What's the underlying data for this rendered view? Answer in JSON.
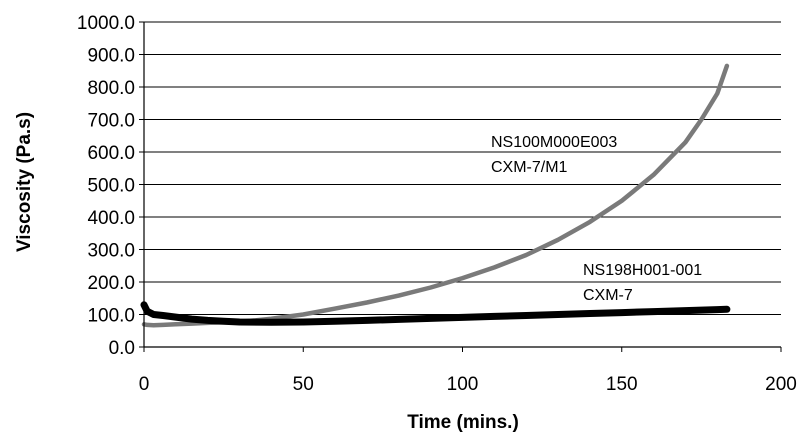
{
  "chart_data": {
    "type": "line",
    "title": "",
    "xlabel": "Time (mins.)",
    "ylabel": "Viscosity (Pa.s)",
    "xlim": [
      0,
      200
    ],
    "ylim": [
      0,
      1000
    ],
    "x_ticks": [
      "0",
      "50",
      "100",
      "150",
      "200"
    ],
    "y_ticks": [
      "0.0",
      "100.0",
      "200.0",
      "300.0",
      "400.0",
      "500.0",
      "600.0",
      "700.0",
      "800.0",
      "900.0",
      "1000.0"
    ],
    "grid": "horizontal",
    "legend": "none",
    "annotations": [
      {
        "lines": [
          "NS100M000E003",
          "CXM-7/M1"
        ]
      },
      {
        "lines": [
          "NS198H001-001",
          "CXM-7"
        ]
      }
    ],
    "series": [
      {
        "name": "NS100M000E003 CXM-7/M1",
        "color": "#7a7a7a",
        "x": [
          0,
          1,
          3,
          6,
          10,
          15,
          20,
          25,
          30,
          35,
          40,
          50,
          60,
          70,
          80,
          90,
          100,
          110,
          120,
          130,
          140,
          150,
          160,
          170,
          175,
          180,
          183
        ],
        "y": [
          70,
          68,
          67,
          68,
          70,
          72,
          74,
          76,
          78,
          82,
          87,
          100,
          118,
          137,
          158,
          183,
          212,
          245,
          283,
          330,
          385,
          450,
          530,
          630,
          700,
          780,
          865
        ]
      },
      {
        "name": "NS198H001-001 CXM-7",
        "color": "#000000",
        "x": [
          0,
          1,
          3,
          6,
          10,
          15,
          20,
          25,
          30,
          40,
          50,
          60,
          70,
          80,
          90,
          100,
          110,
          120,
          130,
          140,
          150,
          160,
          170,
          180,
          183
        ],
        "y": [
          130,
          110,
          100,
          97,
          92,
          86,
          82,
          79,
          77,
          76,
          77,
          79,
          82,
          85,
          88,
          91,
          94,
          97,
          100,
          103,
          106,
          109,
          112,
          115,
          116
        ]
      }
    ]
  }
}
